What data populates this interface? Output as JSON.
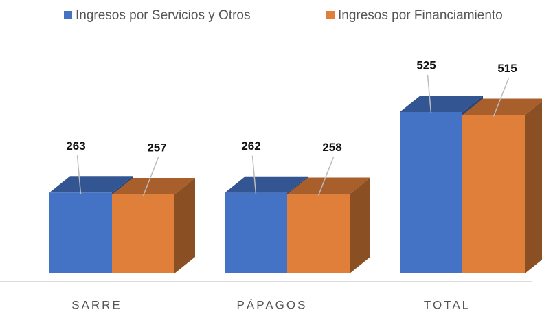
{
  "chart_data": {
    "type": "bar3d",
    "categories": [
      "SARRE",
      "PÁPAGOS",
      "TOTAL"
    ],
    "series": [
      {
        "name": "Ingresos por Servicios y Otros",
        "color": "#4472c4",
        "values": [
          263,
          262,
          525
        ]
      },
      {
        "name": "Ingresos por Financiamiento",
        "color": "#e07f3a",
        "values": [
          257,
          258,
          515
        ]
      }
    ]
  }
}
